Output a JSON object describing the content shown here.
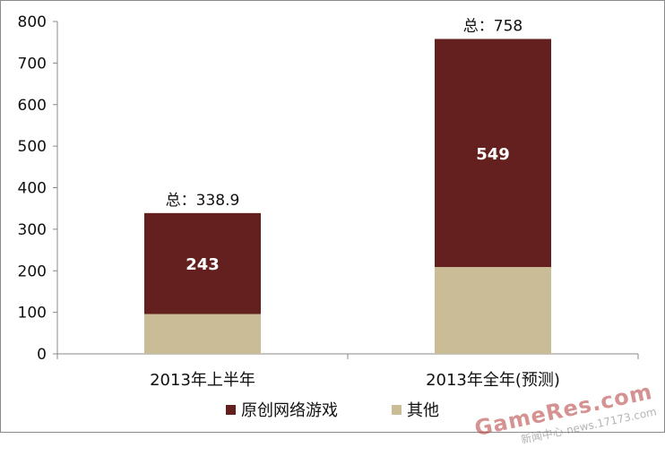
{
  "chart_data": {
    "type": "bar",
    "stacked": true,
    "categories": [
      "2013年上半年",
      "2013年全年(预测)"
    ],
    "series": [
      {
        "name": "其他",
        "values": [
          95.9,
          209
        ],
        "color": "#c9bc96",
        "show_labels": false
      },
      {
        "name": "原创网络游戏",
        "values": [
          243,
          549
        ],
        "color": "#64201f",
        "show_labels": true
      }
    ],
    "totals": [
      {
        "label": "总：338.9",
        "value": 338.9
      },
      {
        "label": "总：758",
        "value": 758
      }
    ],
    "ylim": [
      0,
      800
    ],
    "yticks": [
      "0",
      "100",
      "200",
      "300",
      "400",
      "500",
      "600",
      "700",
      "800"
    ],
    "ytick_values": [
      0,
      100,
      200,
      300,
      400,
      500,
      600,
      700,
      800
    ],
    "grid": false,
    "legend_position": "bottom"
  },
  "legend": {
    "items": [
      {
        "label": "原创网络游戏",
        "color": "#64201f"
      },
      {
        "label": "其他",
        "color": "#c9bc96"
      }
    ]
  },
  "watermark": {
    "main": "GameRes.com",
    "sub": "新闻中心 news.17173.com"
  }
}
